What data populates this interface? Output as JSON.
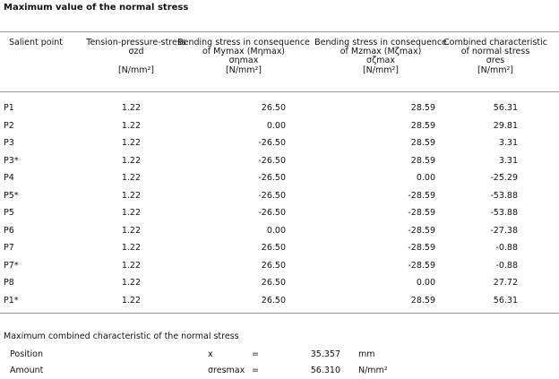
{
  "title": "Maximum value of the normal stress",
  "table": {
    "headers": [
      {
        "lines": [
          "Salient point"
        ]
      },
      {
        "lines": [
          "Tension-pressure-stress",
          "σzd"
        ],
        "unit": "[N/mm²]"
      },
      {
        "lines": [
          "Bending stress in consequence",
          "of Mymax (Mηmax)",
          "σηmax"
        ],
        "unit": "[N/mm²]"
      },
      {
        "lines": [
          "Bending stress in consequence",
          "of Mzmax (Mζmax)",
          "σζmax"
        ],
        "unit": "[N/mm²]"
      },
      {
        "lines": [
          "Combined characteristic",
          "of normal stress",
          "σres"
        ],
        "unit": "[N/mm²]"
      }
    ],
    "rows": [
      [
        "P1",
        "1.22",
        "26.50",
        "28.59",
        "56.31"
      ],
      [
        "P2",
        "1.22",
        "0.00",
        "28.59",
        "29.81"
      ],
      [
        "P3",
        "1.22",
        "-26.50",
        "28.59",
        "3.31"
      ],
      [
        "P3*",
        "1.22",
        "-26.50",
        "28.59",
        "3.31"
      ],
      [
        "P4",
        "1.22",
        "-26.50",
        "0.00",
        "-25.29"
      ],
      [
        "P5*",
        "1.22",
        "-26.50",
        "-28.59",
        "-53.88"
      ],
      [
        "P5",
        "1.22",
        "-26.50",
        "-28.59",
        "-53.88"
      ],
      [
        "P6",
        "1.22",
        "0.00",
        "-28.59",
        "-27.38"
      ],
      [
        "P7",
        "1.22",
        "26.50",
        "-28.59",
        "-0.88"
      ],
      [
        "P7*",
        "1.22",
        "26.50",
        "-28.59",
        "-0.88"
      ],
      [
        "P8",
        "1.22",
        "26.50",
        "0.00",
        "27.72"
      ],
      [
        "P1*",
        "1.22",
        "26.50",
        "28.59",
        "56.31"
      ]
    ]
  },
  "summary": {
    "title": "Maximum combined characteristic of the normal stress",
    "rows": [
      [
        "Position",
        "x",
        "=",
        "35.357",
        "mm"
      ],
      [
        "Amount",
        "σresmax",
        "=",
        "56.310",
        "N/mm²"
      ]
    ]
  }
}
